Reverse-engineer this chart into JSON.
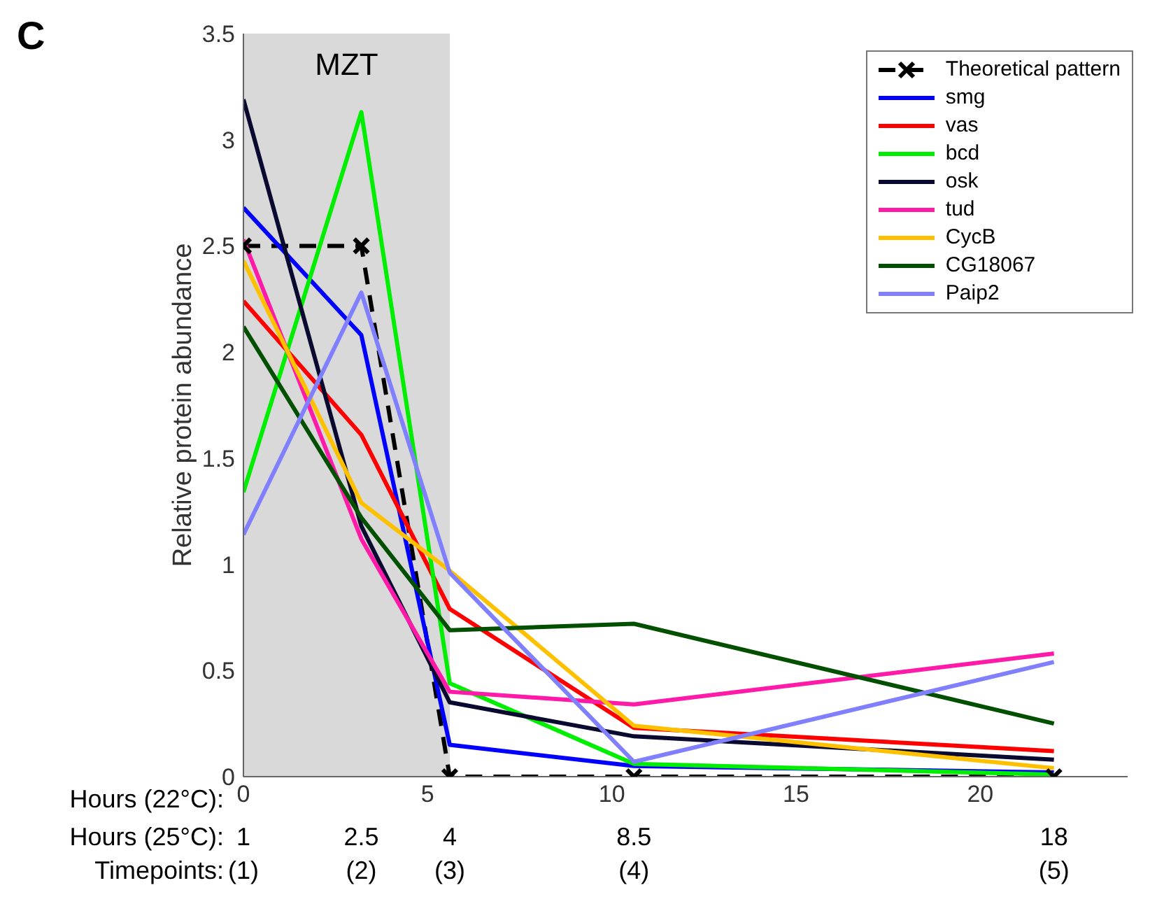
{
  "chart_data": {
    "type": "line",
    "title": "C",
    "xlabel": "Hours (22°C):",
    "ylabel": "Relative protein abundance",
    "x": [
      0,
      3.2,
      5.6,
      10.6,
      22
    ],
    "xlim": [
      0,
      24
    ],
    "xticks": [
      0,
      5,
      10,
      15,
      20
    ],
    "ylim": [
      0,
      3.5
    ],
    "yticks": [
      0,
      0.5,
      1,
      1.5,
      2,
      2.5,
      3,
      3.5
    ],
    "grid": false,
    "legend": "top right",
    "marker": "none",
    "line_style": "solid",
    "bands": [
      {
        "axis": "x",
        "from": 0,
        "to": 5.6,
        "label": "MZT",
        "color": "#d9d9d9"
      }
    ],
    "annotations": [
      "Hours (25°C):",
      "1",
      "2.5",
      "4",
      "8.5",
      "18",
      "Timepoints:",
      "(1)",
      "(2)",
      "(3)",
      "(4)",
      "(5)"
    ],
    "series": [
      {
        "name": "Theoretical pattern",
        "color": "#000000",
        "values": [
          2.5,
          2.5,
          0,
          0,
          0
        ],
        "marker": "cross",
        "line_style": "dashed"
      },
      {
        "name": "smg",
        "color": "#0000ff",
        "values": [
          2.68,
          2.08,
          0.15,
          0.05,
          0.02
        ]
      },
      {
        "name": "vas",
        "color": "#ff0000",
        "values": [
          2.24,
          1.61,
          0.79,
          0.23,
          0.12
        ]
      },
      {
        "name": "bcd",
        "color": "#00ee00",
        "values": [
          1.34,
          3.13,
          0.44,
          0.06,
          0.01
        ]
      },
      {
        "name": "osk",
        "color": "#0a0a30",
        "values": [
          3.19,
          1.18,
          0.35,
          0.19,
          0.08
        ]
      },
      {
        "name": "tud",
        "color": "#ff1aa8",
        "values": [
          2.53,
          1.12,
          0.4,
          0.34,
          0.58
        ]
      },
      {
        "name": "CycB",
        "color": "#ffc000",
        "values": [
          2.43,
          1.29,
          0.97,
          0.24,
          0.04
        ]
      },
      {
        "name": "CG18067",
        "color": "#005000",
        "values": [
          2.12,
          1.22,
          0.69,
          0.72,
          0.25
        ]
      },
      {
        "name": "Paip2",
        "color": "#8080ff",
        "values": [
          1.14,
          2.28,
          0.96,
          0.07,
          0.54
        ]
      }
    ]
  }
}
